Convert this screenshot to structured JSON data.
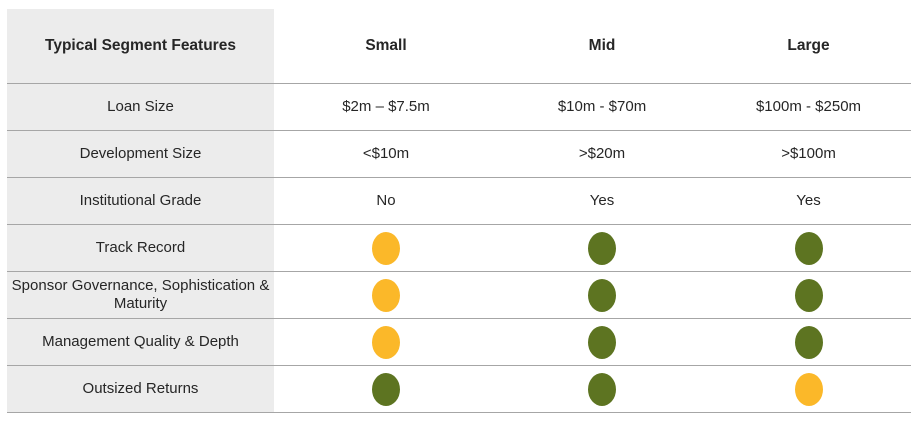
{
  "colors": {
    "amber": "#fbb829",
    "green": "#5d7421",
    "label_bg": "#ececec",
    "rule": "#a6a6a6"
  },
  "header": {
    "features": "Typical Segment Features",
    "small": "Small",
    "mid": "Mid",
    "large": "Large"
  },
  "rows": [
    {
      "label": "Loan Size",
      "small": "$2m – $7.5m",
      "mid": "$10m - $70m",
      "large": "$100m - $250m"
    },
    {
      "label": "Development Size",
      "small": "<$10m",
      "mid": ">$20m",
      "large": ">$100m"
    },
    {
      "label": "Institutional  Grade",
      "small": "No",
      "mid": "Yes",
      "large": "Yes"
    },
    {
      "label": "Track Record",
      "small": "amber",
      "mid": "green",
      "large": "green"
    },
    {
      "label": "Sponsor Governance, Sophistication & Maturity",
      "small": "amber",
      "mid": "green",
      "large": "green"
    },
    {
      "label": "Management Quality & Depth",
      "small": "amber",
      "mid": "green",
      "large": "green"
    },
    {
      "label": "Outsized Returns",
      "small": "green",
      "mid": "green",
      "large": "amber"
    }
  ]
}
